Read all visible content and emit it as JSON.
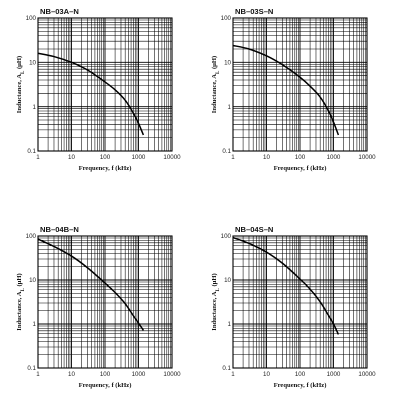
{
  "chart_data": [
    {
      "type": "line",
      "title": "NB–03A–N",
      "xlabel": "Frequency, f (kHz)",
      "ylabel": "Inductance, A",
      "ylabel_subscript": "L",
      "ylabel_unit": "(μH)",
      "x_scale": "log",
      "y_scale": "log",
      "xlim": [
        1,
        10000
      ],
      "ylim": [
        0.1,
        100
      ],
      "x_ticks": [
        "1",
        "10",
        "100",
        "1000",
        "10000"
      ],
      "y_ticks": [
        "100",
        "10",
        "1",
        "0.1"
      ],
      "grid": true,
      "series": [
        {
          "x": [
            1,
            3,
            10,
            30,
            100,
            200,
            400,
            700,
            1000,
            1400
          ],
          "y": [
            16,
            13.5,
            10,
            6.7,
            3.6,
            2.4,
            1.4,
            0.72,
            0.42,
            0.23
          ]
        }
      ]
    },
    {
      "type": "line",
      "title": "NB–03S–N",
      "xlabel": "Frequency, f (kHz)",
      "ylabel": "Inductance, A",
      "ylabel_subscript": "L",
      "ylabel_unit": "(μH)",
      "x_scale": "log",
      "y_scale": "log",
      "xlim": [
        1,
        10000
      ],
      "ylim": [
        0.1,
        100
      ],
      "x_ticks": [
        "1",
        "10",
        "100",
        "1000",
        "10000"
      ],
      "y_ticks": [
        "100",
        "10",
        "1",
        "0.1"
      ],
      "grid": true,
      "series": [
        {
          "x": [
            1,
            3,
            10,
            30,
            100,
            200,
            400,
            700,
            1000,
            1400
          ],
          "y": [
            24,
            20,
            14,
            8.8,
            4.6,
            2.9,
            1.65,
            0.82,
            0.45,
            0.23
          ]
        }
      ]
    },
    {
      "type": "line",
      "title": "NB–04B–N",
      "xlabel": "Frequency, f (kHz)",
      "ylabel": "Inductance, A",
      "ylabel_subscript": "L",
      "ylabel_unit": "(μH)",
      "x_scale": "log",
      "y_scale": "log",
      "xlim": [
        1,
        10000
      ],
      "ylim": [
        0.1,
        100
      ],
      "x_ticks": [
        "1",
        "10",
        "100",
        "1000",
        "10000"
      ],
      "y_ticks": [
        "100",
        "10",
        "1",
        "0.1"
      ],
      "grid": true,
      "series": [
        {
          "x": [
            1,
            3,
            10,
            30,
            100,
            200,
            400,
            700,
            1000,
            1400
          ],
          "y": [
            85,
            58,
            35,
            19,
            8.5,
            5.2,
            2.9,
            1.55,
            1.05,
            0.72
          ]
        }
      ]
    },
    {
      "type": "line",
      "title": "NB–04S–N",
      "xlabel": "Frequency, f (kHz)",
      "ylabel": "Inductance, A",
      "ylabel_subscript": "L",
      "ylabel_unit": "(μH)",
      "x_scale": "log",
      "y_scale": "log",
      "xlim": [
        1,
        10000
      ],
      "ylim": [
        0.1,
        100
      ],
      "x_ticks": [
        "1",
        "10",
        "100",
        "1000",
        "10000"
      ],
      "y_ticks": [
        "100",
        "10",
        "1",
        "0.1"
      ],
      "grid": true,
      "series": [
        {
          "x": [
            1,
            3,
            10,
            30,
            100,
            200,
            400,
            700,
            1000,
            1400
          ],
          "y": [
            92,
            68,
            43,
            24,
            10.5,
            6.2,
            3.2,
            1.6,
            1.0,
            0.58
          ]
        }
      ]
    }
  ]
}
